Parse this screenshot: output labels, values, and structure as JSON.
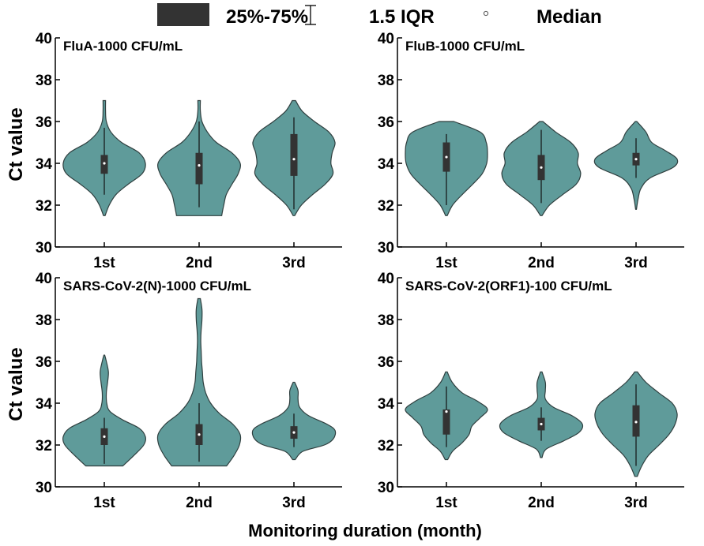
{
  "colors": {
    "violin_fill": "#5f9b9a",
    "box_fill": "#333333",
    "median_fill": "#ffffff"
  },
  "legend": {
    "box_label": "25%-75%",
    "whisker_label": "1.5 IQR",
    "median_label": "Median",
    "placement": "top"
  },
  "figure": {
    "ylabel": "Ct value",
    "xlabel": "Monitoring duration (month)"
  },
  "chart_data": [
    {
      "type": "violin",
      "title": "FluA-1000 CFU/mL",
      "categories": [
        "1st",
        "2nd",
        "3rd"
      ],
      "ylim": [
        30,
        40
      ],
      "yticks": [
        "30",
        "32",
        "34",
        "36",
        "38",
        "40"
      ],
      "series": [
        {
          "category": "1st",
          "min": 31.5,
          "max": 37.0,
          "q1": 33.5,
          "median": 34.0,
          "q3": 34.4,
          "whisker_low": 32.5,
          "whisker_high": 35.7,
          "density": [
            [
              31.5,
              0.02
            ],
            [
              32,
              0.12
            ],
            [
              32.5,
              0.28
            ],
            [
              33,
              0.58
            ],
            [
              33.5,
              0.92
            ],
            [
              34,
              1.0
            ],
            [
              34.5,
              0.85
            ],
            [
              35,
              0.42
            ],
            [
              35.5,
              0.16
            ],
            [
              36,
              0.05
            ],
            [
              36.5,
              0.03
            ],
            [
              37,
              0.03
            ]
          ]
        },
        {
          "category": "2nd",
          "min": 31.5,
          "max": 37.0,
          "q1": 33.0,
          "median": 33.9,
          "q3": 34.5,
          "whisker_low": 31.9,
          "whisker_high": 36.0,
          "density": [
            [
              31.5,
              0.55
            ],
            [
              32,
              0.6
            ],
            [
              32.5,
              0.66
            ],
            [
              33,
              0.8
            ],
            [
              33.5,
              0.95
            ],
            [
              34,
              1.0
            ],
            [
              34.5,
              0.8
            ],
            [
              35,
              0.42
            ],
            [
              35.5,
              0.2
            ],
            [
              36,
              0.07
            ],
            [
              36.5,
              0.03
            ],
            [
              37,
              0.03
            ]
          ]
        },
        {
          "category": "3rd",
          "min": 31.5,
          "max": 37.0,
          "q1": 33.4,
          "median": 34.2,
          "q3": 35.4,
          "whisker_low": 31.8,
          "whisker_high": 36.2,
          "density": [
            [
              31.5,
              0.02
            ],
            [
              32,
              0.18
            ],
            [
              32.5,
              0.45
            ],
            [
              33,
              0.76
            ],
            [
              33.5,
              0.95
            ],
            [
              34,
              0.9
            ],
            [
              34.5,
              0.93
            ],
            [
              35,
              1.0
            ],
            [
              35.5,
              0.85
            ],
            [
              36,
              0.5
            ],
            [
              36.5,
              0.2
            ],
            [
              37,
              0.04
            ]
          ]
        }
      ]
    },
    {
      "type": "violin",
      "title": "FluB-1000 CFU/mL",
      "categories": [
        "1st",
        "2nd",
        "3rd"
      ],
      "ylim": [
        30,
        40
      ],
      "yticks": [
        "30",
        "32",
        "34",
        "36",
        "38",
        "40"
      ],
      "series": [
        {
          "category": "1st",
          "min": 31.5,
          "max": 36.0,
          "q1": 33.6,
          "median": 34.3,
          "q3": 35.0,
          "whisker_low": 32.0,
          "whisker_high": 35.4,
          "density": [
            [
              31.5,
              0.02
            ],
            [
              32,
              0.15
            ],
            [
              32.5,
              0.38
            ],
            [
              33,
              0.64
            ],
            [
              33.5,
              0.87
            ],
            [
              34,
              0.98
            ],
            [
              34.5,
              1.0
            ],
            [
              35,
              0.97
            ],
            [
              35.5,
              0.82
            ],
            [
              36,
              0.18
            ]
          ]
        },
        {
          "category": "2nd",
          "min": 31.5,
          "max": 36.0,
          "q1": 33.2,
          "median": 33.8,
          "q3": 34.4,
          "whisker_low": 32.1,
          "whisker_high": 35.6,
          "density": [
            [
              31.5,
              0.02
            ],
            [
              32,
              0.2
            ],
            [
              32.5,
              0.52
            ],
            [
              33,
              0.85
            ],
            [
              33.5,
              0.96
            ],
            [
              34,
              0.88
            ],
            [
              34.5,
              0.9
            ],
            [
              35,
              0.72
            ],
            [
              35.5,
              0.35
            ],
            [
              36,
              0.04
            ]
          ]
        },
        {
          "category": "3rd",
          "min": 31.8,
          "max": 36.0,
          "q1": 33.9,
          "median": 34.2,
          "q3": 34.5,
          "whisker_low": 33.3,
          "whisker_high": 35.2,
          "density": [
            [
              31.8,
              0.01
            ],
            [
              32.3,
              0.05
            ],
            [
              32.8,
              0.12
            ],
            [
              33.3,
              0.34
            ],
            [
              33.8,
              0.9
            ],
            [
              34.2,
              1.0
            ],
            [
              34.6,
              0.72
            ],
            [
              35,
              0.38
            ],
            [
              35.5,
              0.24
            ],
            [
              36,
              0.02
            ]
          ]
        }
      ]
    },
    {
      "type": "violin",
      "title": "SARS-CoV-2(N)-1000 CFU/mL",
      "categories": [
        "1st",
        "2nd",
        "3rd"
      ],
      "ylim": [
        30,
        40
      ],
      "yticks": [
        "30",
        "32",
        "34",
        "36",
        "38",
        "40"
      ],
      "series": [
        {
          "category": "1st",
          "min": 31.0,
          "max": 36.3,
          "q1": 32.0,
          "median": 32.4,
          "q3": 32.8,
          "whisker_low": 31.1,
          "whisker_high": 33.3,
          "density": [
            [
              31,
              0.45
            ],
            [
              31.5,
              0.72
            ],
            [
              32,
              0.96
            ],
            [
              32.4,
              1.0
            ],
            [
              32.8,
              0.85
            ],
            [
              33.2,
              0.45
            ],
            [
              33.6,
              0.14
            ],
            [
              34,
              0.06
            ],
            [
              34.5,
              0.05
            ],
            [
              35,
              0.08
            ],
            [
              35.5,
              0.1
            ],
            [
              36,
              0.05
            ],
            [
              36.3,
              0.01
            ]
          ]
        },
        {
          "category": "2nd",
          "min": 31.0,
          "max": 39.0,
          "q1": 32.0,
          "median": 32.5,
          "q3": 33.0,
          "whisker_low": 31.2,
          "whisker_high": 34.0,
          "density": [
            [
              31,
              0.67
            ],
            [
              31.5,
              0.85
            ],
            [
              32,
              0.98
            ],
            [
              32.5,
              1.0
            ],
            [
              33,
              0.82
            ],
            [
              33.5,
              0.5
            ],
            [
              34,
              0.28
            ],
            [
              34.5,
              0.16
            ],
            [
              35,
              0.1
            ],
            [
              35.5,
              0.08
            ],
            [
              36,
              0.06
            ],
            [
              36.5,
              0.05
            ],
            [
              37,
              0.04
            ],
            [
              37.5,
              0.05
            ],
            [
              38,
              0.07
            ],
            [
              38.5,
              0.07
            ],
            [
              39,
              0.03
            ]
          ]
        },
        {
          "category": "3rd",
          "min": 31.3,
          "max": 35.0,
          "q1": 32.3,
          "median": 32.6,
          "q3": 32.9,
          "whisker_low": 31.9,
          "whisker_high": 33.5,
          "density": [
            [
              31.3,
              0.03
            ],
            [
              31.7,
              0.22
            ],
            [
              32,
              0.74
            ],
            [
              32.3,
              0.96
            ],
            [
              32.7,
              1.0
            ],
            [
              33,
              0.8
            ],
            [
              33.4,
              0.36
            ],
            [
              33.8,
              0.14
            ],
            [
              34.2,
              0.1
            ],
            [
              34.6,
              0.1
            ],
            [
              35,
              0.02
            ]
          ]
        }
      ]
    },
    {
      "type": "violin",
      "title": "SARS-CoV-2(ORF1)-100 CFU/mL",
      "categories": [
        "1st",
        "2nd",
        "3rd"
      ],
      "ylim": [
        30,
        40
      ],
      "yticks": [
        "30",
        "32",
        "34",
        "36",
        "38",
        "40"
      ],
      "series": [
        {
          "category": "1st",
          "min": 31.3,
          "max": 35.5,
          "q1": 32.5,
          "median": 33.6,
          "q3": 33.7,
          "whisker_low": 31.9,
          "whisker_high": 34.8,
          "density": [
            [
              31.3,
              0.03
            ],
            [
              31.7,
              0.15
            ],
            [
              32.1,
              0.38
            ],
            [
              32.5,
              0.55
            ],
            [
              32.9,
              0.62
            ],
            [
              33.3,
              0.82
            ],
            [
              33.7,
              1.0
            ],
            [
              34.1,
              0.75
            ],
            [
              34.5,
              0.38
            ],
            [
              35,
              0.14
            ],
            [
              35.5,
              0.02
            ]
          ]
        },
        {
          "category": "2nd",
          "min": 31.4,
          "max": 35.5,
          "q1": 32.7,
          "median": 33.0,
          "q3": 33.3,
          "whisker_low": 32.2,
          "whisker_high": 33.8,
          "density": [
            [
              31.4,
              0.02
            ],
            [
              31.8,
              0.12
            ],
            [
              32.2,
              0.55
            ],
            [
              32.6,
              0.92
            ],
            [
              33,
              1.0
            ],
            [
              33.4,
              0.75
            ],
            [
              33.8,
              0.3
            ],
            [
              34.2,
              0.1
            ],
            [
              34.6,
              0.1
            ],
            [
              35,
              0.1
            ],
            [
              35.5,
              0.02
            ]
          ]
        },
        {
          "category": "3rd",
          "min": 30.5,
          "max": 35.5,
          "q1": 32.4,
          "median": 33.1,
          "q3": 33.9,
          "whisker_low": 31.0,
          "whisker_high": 34.9,
          "density": [
            [
              30.5,
              0.03
            ],
            [
              31,
              0.14
            ],
            [
              31.5,
              0.3
            ],
            [
              32,
              0.56
            ],
            [
              32.5,
              0.8
            ],
            [
              33,
              0.95
            ],
            [
              33.5,
              1.0
            ],
            [
              34,
              0.88
            ],
            [
              34.5,
              0.55
            ],
            [
              35,
              0.24
            ],
            [
              35.5,
              0.03
            ]
          ]
        }
      ]
    }
  ]
}
